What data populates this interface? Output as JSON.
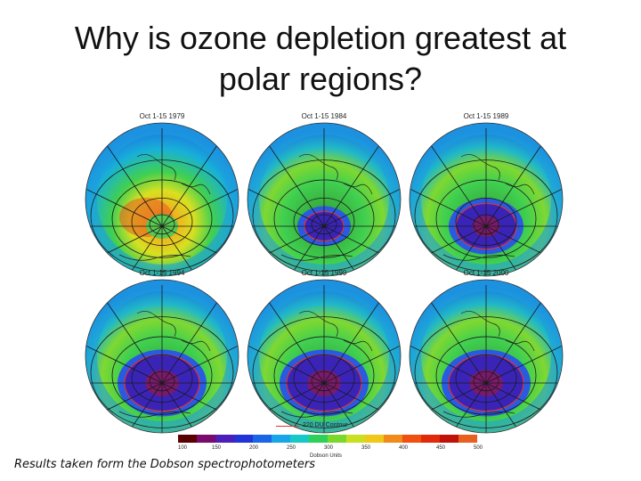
{
  "slide": {
    "title_line1": "Why is ozone depletion greatest at",
    "title_line2": "polar regions?",
    "caption": "Results taken form the Dobson spectrophotometers"
  },
  "maps": [
    {
      "label": "Oct 1-15 1979",
      "hole": "none"
    },
    {
      "label": "Oct 1-15 1984",
      "hole": "small"
    },
    {
      "label": "Oct 1-15 1989",
      "hole": "medium"
    },
    {
      "label": "Oct 1-15 1994",
      "hole": "large"
    },
    {
      "label": "Oct 1-15 1999",
      "hole": "large"
    },
    {
      "label": "Oct 1-15 2000",
      "hole": "large"
    }
  ],
  "legend": {
    "contour_label": "220 DU Contour",
    "units": "Dobson Units",
    "ticks": [
      "100",
      "150",
      "200",
      "250",
      "300",
      "350",
      "400",
      "450",
      "500"
    ],
    "colors": [
      "#5a0000",
      "#7a0a6e",
      "#4b1fb8",
      "#2233d8",
      "#1a66e6",
      "#18a6e8",
      "#16c8c8",
      "#2fd05a",
      "#7ad82a",
      "#c8e020",
      "#f0c818",
      "#f08a18",
      "#f05010",
      "#e02a0a",
      "#c01208",
      "#e86020"
    ]
  }
}
